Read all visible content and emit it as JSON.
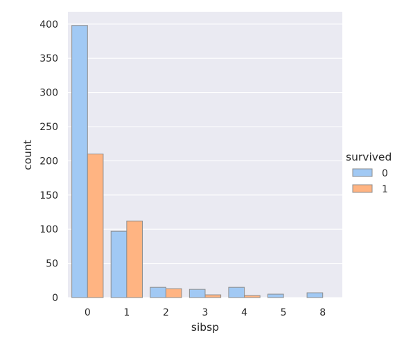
{
  "chart_data": {
    "type": "bar",
    "title": "",
    "xlabel": "sibsp",
    "ylabel": "count",
    "categories": [
      "0",
      "1",
      "2",
      "3",
      "4",
      "5",
      "8"
    ],
    "series": [
      {
        "name": "0",
        "color": "#a1c9f4",
        "values": [
          398,
          97,
          15,
          12,
          15,
          5,
          7
        ]
      },
      {
        "name": "1",
        "color": "#ffb482",
        "values": [
          210,
          112,
          13,
          4,
          3,
          0,
          0
        ]
      }
    ],
    "ylim": [
      0,
      418
    ],
    "yticks": [
      0,
      50,
      100,
      150,
      200,
      250,
      300,
      350,
      400
    ],
    "grid": true,
    "legend": {
      "title": "survived",
      "placement": "right"
    },
    "colors": {
      "plot_background": "#eaeaf2",
      "gridline": "#ffffff",
      "bar_edge": "#8c8c8c",
      "text": "#262626"
    }
  }
}
